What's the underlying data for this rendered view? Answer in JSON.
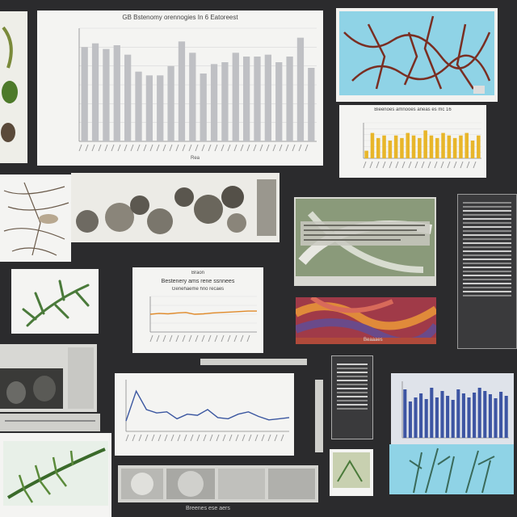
{
  "colors": {
    "background": "#2b2b2d",
    "panel": "#f4f4f2",
    "bar_gray": "#bfc0c4",
    "bar_yellow": "#e8b62a",
    "bar_blue": "#3d55a3",
    "line_orange": "#e08a2a",
    "line_blue": "#3a56a0",
    "sky_blue": "#8fd3e6"
  },
  "panels": {
    "top_chart_title": "GB Bstenomy orennogies In 6 Eatoreest",
    "top_chart_footer": "Rea",
    "right_small_chart_title": "Bieenoes amnooes aneas es mc 16",
    "mid_chart_title": "Braon",
    "mid_chart_subtitle": "Bestenery ams rene ssnnees",
    "mid_chart_subtitle2": "Genehaeme hno recaes",
    "abstract_caption": "Beaaaes",
    "bottom_caption": "Breenes ese aers"
  },
  "chart_data": [
    {
      "type": "bar",
      "values": [
        50,
        52,
        49,
        51,
        46,
        37,
        35,
        35,
        40,
        53,
        47,
        36,
        41,
        42,
        47,
        45,
        45,
        46,
        42,
        45,
        55,
        39
      ],
      "ylim": [
        0,
        60
      ],
      "grid": true
    },
    {
      "type": "bar",
      "values": [
        3,
        10,
        8,
        9,
        7,
        9,
        8,
        10,
        9,
        8,
        11,
        9,
        8,
        10,
        9,
        8,
        9,
        10,
        7,
        9
      ],
      "ylim": [
        0,
        14
      ],
      "grid": true
    },
    {
      "type": "line",
      "values": [
        40,
        42,
        41,
        43,
        44,
        40,
        41,
        43,
        44,
        45,
        46,
        47,
        47
      ],
      "ylim": [
        0,
        80
      ],
      "grid": true
    },
    {
      "type": "line",
      "values": [
        18,
        70,
        38,
        32,
        34,
        22,
        30,
        28,
        38,
        24,
        22,
        30,
        34,
        26,
        20,
        22,
        24
      ],
      "ylim": [
        0,
        90
      ],
      "grid": false
    },
    {
      "type": "bar",
      "values": [
        60,
        45,
        50,
        55,
        48,
        62,
        50,
        58,
        52,
        47,
        60,
        55,
        50,
        56,
        62,
        58,
        54,
        49,
        57,
        52
      ],
      "ylim": [
        0,
        70
      ],
      "grid": false
    }
  ]
}
